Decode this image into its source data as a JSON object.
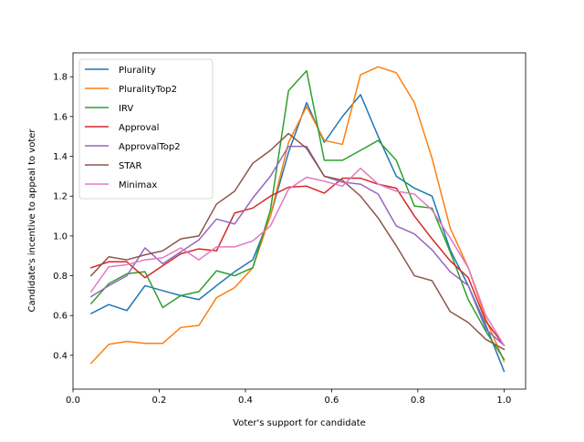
{
  "chart_data": {
    "type": "line",
    "title": "",
    "xlabel": "Voter's support for candidate",
    "ylabel": "Candidate's incentive to appeal to voter",
    "xlim": [
      -0.0,
      1.05
    ],
    "ylim": [
      0.23,
      1.92
    ],
    "xticks": [
      0.0,
      0.2,
      0.4,
      0.6,
      0.8,
      1.0
    ],
    "xtick_labels": [
      "0.0",
      "0.2",
      "0.4",
      "0.6",
      "0.8",
      "1.0"
    ],
    "yticks": [
      0.4,
      0.6,
      0.8,
      1.0,
      1.2,
      1.4,
      1.6,
      1.8
    ],
    "ytick_labels": [
      "0.4",
      "0.6",
      "0.8",
      "1.0",
      "1.2",
      "1.4",
      "1.6",
      "1.8"
    ],
    "grid": false,
    "legend_position": "upper-left",
    "x": [
      0.042,
      0.083,
      0.125,
      0.167,
      0.208,
      0.25,
      0.292,
      0.333,
      0.375,
      0.417,
      0.458,
      0.5,
      0.542,
      0.583,
      0.625,
      0.667,
      0.708,
      0.75,
      0.792,
      0.833,
      0.875,
      0.917,
      0.958,
      1.0
    ],
    "series": [
      {
        "name": "Plurality",
        "color": "#1f77b4",
        "values": [
          0.61,
          0.655,
          0.625,
          0.75,
          0.725,
          0.7,
          0.68,
          0.75,
          0.82,
          0.88,
          1.1,
          1.42,
          1.67,
          1.47,
          1.6,
          1.71,
          1.5,
          1.3,
          1.24,
          1.2,
          0.93,
          0.75,
          0.55,
          0.32
        ]
      },
      {
        "name": "PluralityTop2",
        "color": "#ff7f0e",
        "values": [
          0.36,
          0.455,
          0.47,
          0.46,
          0.46,
          0.54,
          0.55,
          0.69,
          0.74,
          0.84,
          1.1,
          1.47,
          1.65,
          1.48,
          1.46,
          1.81,
          1.85,
          1.82,
          1.67,
          1.39,
          1.04,
          0.84,
          0.58,
          0.37
        ]
      },
      {
        "name": "IRV",
        "color": "#2ca02c",
        "values": [
          0.66,
          0.76,
          0.81,
          0.82,
          0.64,
          0.7,
          0.72,
          0.825,
          0.8,
          0.84,
          1.13,
          1.73,
          1.83,
          1.38,
          1.38,
          1.43,
          1.48,
          1.38,
          1.15,
          1.14,
          0.92,
          0.68,
          0.52,
          0.38
        ]
      },
      {
        "name": "Approval",
        "color": "#d62728",
        "values": [
          0.84,
          0.87,
          0.87,
          0.79,
          0.85,
          0.91,
          0.935,
          0.925,
          1.115,
          1.14,
          1.2,
          1.245,
          1.25,
          1.215,
          1.29,
          1.29,
          1.26,
          1.24,
          1.1,
          0.985,
          0.875,
          0.79,
          0.57,
          0.45
        ]
      },
      {
        "name": "ApprovalTop2",
        "color": "#9467bd",
        "values": [
          0.695,
          0.75,
          0.8,
          0.94,
          0.86,
          0.92,
          0.98,
          1.085,
          1.06,
          1.19,
          1.3,
          1.45,
          1.45,
          1.3,
          1.27,
          1.26,
          1.21,
          1.05,
          1.01,
          0.93,
          0.82,
          0.75,
          0.53,
          0.45
        ]
      },
      {
        "name": "STAR",
        "color": "#8c564b",
        "values": [
          0.8,
          0.895,
          0.88,
          0.905,
          0.925,
          0.985,
          1.0,
          1.16,
          1.225,
          1.365,
          1.43,
          1.515,
          1.44,
          1.3,
          1.28,
          1.2,
          1.09,
          0.95,
          0.8,
          0.775,
          0.62,
          0.565,
          0.48,
          0.43
        ]
      },
      {
        "name": "Minimax",
        "color": "#e377c2",
        "values": [
          0.72,
          0.845,
          0.855,
          0.88,
          0.89,
          0.94,
          0.88,
          0.945,
          0.945,
          0.975,
          1.05,
          1.235,
          1.295,
          1.275,
          1.25,
          1.34,
          1.26,
          1.225,
          1.21,
          1.13,
          0.99,
          0.84,
          0.6,
          0.45
        ]
      }
    ]
  }
}
